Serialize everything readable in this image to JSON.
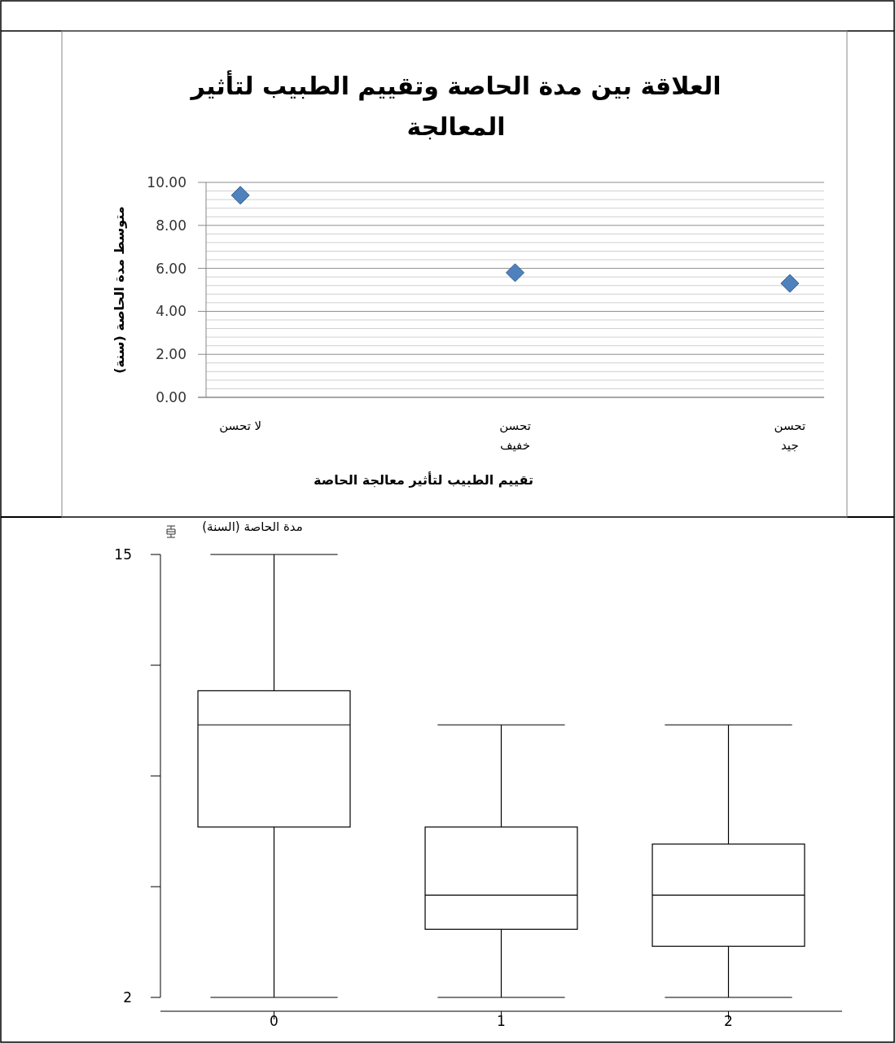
{
  "chart_data": [
    {
      "type": "scatter",
      "title": "العلاقة بين مدة الحاصة وتقييم الطبيب لتأثير\nالمعالجة",
      "xlabel": "تقييم الطبيب لتأثير معالجة الحاصة",
      "ylabel": "متوسط مدة الحاصة (سنة)",
      "categories": [
        "لا تحسن",
        "تحسن\nخفيف",
        "تحسن\nجيد"
      ],
      "series": [
        {
          "color": "#4f81bd",
          "values": [
            9.4,
            5.8,
            5.3
          ]
        }
      ],
      "marker": "diamond",
      "ylim": [
        0,
        10
      ],
      "yticks": [
        {
          "value": 0,
          "label": "0.00"
        },
        {
          "value": 2,
          "label": "2.00"
        },
        {
          "value": 4,
          "label": "4.00"
        },
        {
          "value": 6,
          "label": "6.00"
        },
        {
          "value": 8,
          "label": "8.00"
        },
        {
          "value": 10,
          "label": "10.00"
        }
      ],
      "grid": "y"
    },
    {
      "type": "box",
      "title": "مدة الحاصة (السنة)",
      "categories": [
        "0",
        "1",
        "2"
      ],
      "boxes": [
        {
          "low": 2,
          "q1": 7,
          "median": 10,
          "q3": 11,
          "high": 15
        },
        {
          "low": 2,
          "q1": 4,
          "median": 5,
          "q3": 7,
          "high": 10
        },
        {
          "low": 2,
          "q1": 3.5,
          "median": 5,
          "q3": 6.5,
          "high": 10
        }
      ],
      "ylim": [
        2,
        15
      ],
      "yticks": [
        15,
        {
          "value": 11.75,
          "label": null
        },
        {
          "value": 8.5,
          "label": null
        },
        {
          "value": 5.25,
          "label": null
        },
        2
      ],
      "grid": false
    }
  ]
}
